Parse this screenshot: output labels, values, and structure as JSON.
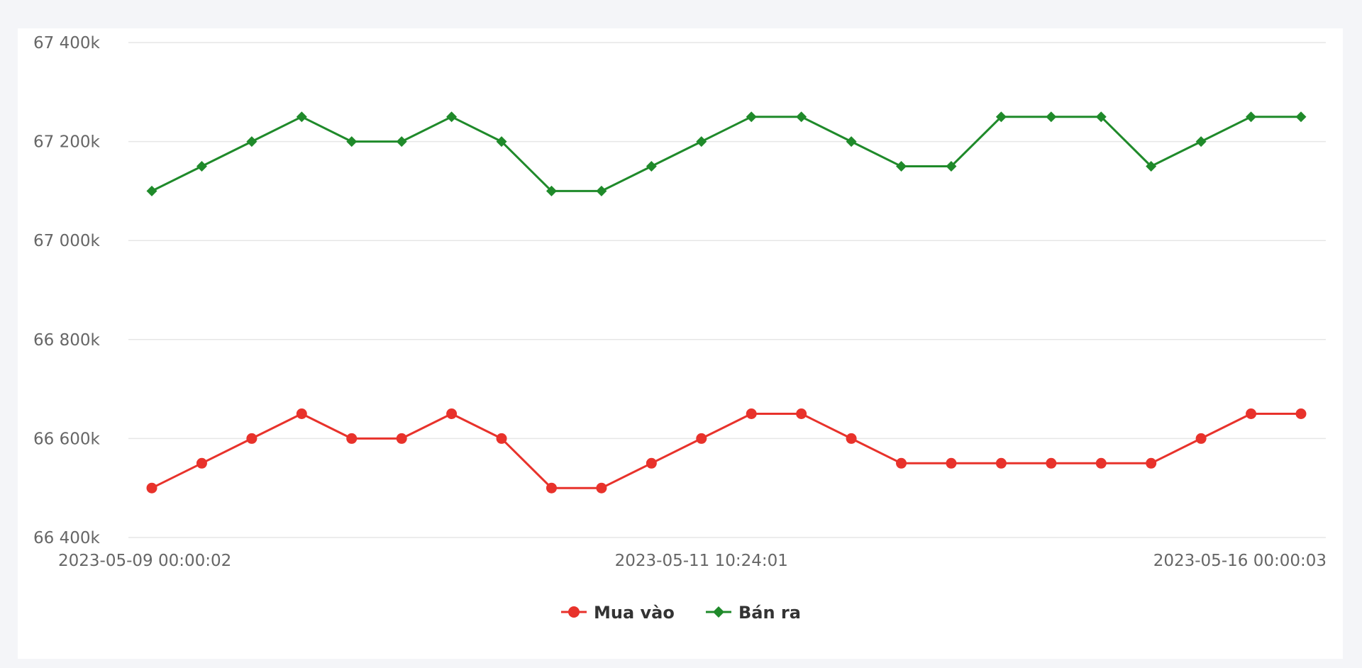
{
  "chart_data": {
    "type": "line",
    "title": "",
    "xlabel": "",
    "ylabel": "",
    "ylim": [
      66400,
      67400
    ],
    "y_ticks": [
      66400,
      66600,
      66800,
      67000,
      67200,
      67400
    ],
    "y_tick_labels": [
      "66 400k",
      "66 600k",
      "66 800k",
      "67 000k",
      "67 200k",
      "67 400k"
    ],
    "x_tick_labels": [
      {
        "index": 0,
        "label": "2023-05-09 00:00:02"
      },
      {
        "index": 11,
        "label": "2023-05-11 10:24:01"
      },
      {
        "index": 23,
        "label": "2023-05-16 00:00:03"
      }
    ],
    "point_count": 24,
    "grid": true,
    "legend_position": "bottom-center",
    "series": [
      {
        "name": "Mua vào",
        "color": "#e8322b",
        "marker": "circle",
        "values": [
          66500,
          66550,
          66600,
          66650,
          66600,
          66600,
          66650,
          66600,
          66500,
          66500,
          66550,
          66600,
          66650,
          66650,
          66600,
          66550,
          66550,
          66550,
          66550,
          66550,
          66550,
          66600,
          66650,
          66650
        ]
      },
      {
        "name": "Bán ra",
        "color": "#1f8a2a",
        "marker": "diamond",
        "values": [
          67100,
          67150,
          67200,
          67250,
          67200,
          67200,
          67250,
          67200,
          67100,
          67100,
          67150,
          67200,
          67250,
          67250,
          67200,
          67150,
          67150,
          67250,
          67250,
          67250,
          67150,
          67200,
          67250,
          67250
        ]
      }
    ]
  }
}
